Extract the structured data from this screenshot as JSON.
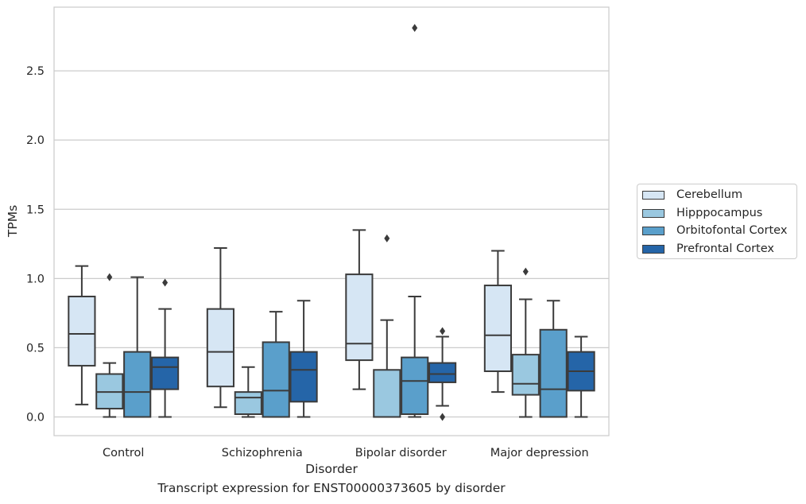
{
  "chart_data": {
    "type": "box",
    "caption": "Transcript expression for ENST00000373605 by disorder",
    "xlabel": "Disorder",
    "ylabel": "TPMs",
    "ylim": [
      -0.135,
      2.96
    ],
    "yticks": [
      "0.0",
      "0.5",
      "1.0",
      "1.5",
      "2.0",
      "2.5"
    ],
    "ytick_values": [
      0,
      0.5,
      1.0,
      1.5,
      2.0,
      2.5
    ],
    "grid": true,
    "legend_position": "right, outside plot",
    "categories": [
      "Control",
      "Schizophrenia",
      "Bipolar disorder",
      "Major depression"
    ],
    "series": [
      {
        "name": "Cerebellum",
        "color": "#d6e6f4",
        "boxes": [
          {
            "whisker_low": 0.09,
            "q1": 0.37,
            "median": 0.6,
            "q3": 0.87,
            "whisker_high": 1.09,
            "outliers": []
          },
          {
            "whisker_low": 0.07,
            "q1": 0.22,
            "median": 0.47,
            "q3": 0.78,
            "whisker_high": 1.22,
            "outliers": []
          },
          {
            "whisker_low": 0.2,
            "q1": 0.41,
            "median": 0.53,
            "q3": 1.03,
            "whisker_high": 1.35,
            "outliers": []
          },
          {
            "whisker_low": 0.18,
            "q1": 0.33,
            "median": 0.59,
            "q3": 0.95,
            "whisker_high": 1.2,
            "outliers": []
          }
        ]
      },
      {
        "name": "Hipppocampus",
        "color": "#9ac8e0",
        "boxes": [
          {
            "whisker_low": 0.0,
            "q1": 0.06,
            "median": 0.18,
            "q3": 0.31,
            "whisker_high": 0.39,
            "outliers": [
              1.01
            ]
          },
          {
            "whisker_low": 0.0,
            "q1": 0.02,
            "median": 0.14,
            "q3": 0.18,
            "whisker_high": 0.36,
            "outliers": []
          },
          {
            "whisker_low": 0.0,
            "q1": 0.0,
            "median": 0.0,
            "q3": 0.34,
            "whisker_high": 0.7,
            "outliers": [
              1.29
            ]
          },
          {
            "whisker_low": 0.0,
            "q1": 0.16,
            "median": 0.24,
            "q3": 0.45,
            "whisker_high": 0.85,
            "outliers": [
              1.05
            ]
          }
        ]
      },
      {
        "name": "Orbitofontal Cortex",
        "color": "#5a9fcb",
        "boxes": [
          {
            "whisker_low": 0.0,
            "q1": 0.0,
            "median": 0.18,
            "q3": 0.47,
            "whisker_high": 1.01,
            "outliers": []
          },
          {
            "whisker_low": 0.0,
            "q1": 0.0,
            "median": 0.19,
            "q3": 0.54,
            "whisker_high": 0.76,
            "outliers": []
          },
          {
            "whisker_low": 0.0,
            "q1": 0.02,
            "median": 0.26,
            "q3": 0.43,
            "whisker_high": 0.87,
            "outliers": [
              2.81
            ]
          },
          {
            "whisker_low": 0.0,
            "q1": 0.0,
            "median": 0.2,
            "q3": 0.63,
            "whisker_high": 0.84,
            "outliers": []
          }
        ]
      },
      {
        "name": "Prefrontal Cortex",
        "color": "#2565a8",
        "boxes": [
          {
            "whisker_low": 0.0,
            "q1": 0.2,
            "median": 0.36,
            "q3": 0.43,
            "whisker_high": 0.78,
            "outliers": [
              0.97
            ]
          },
          {
            "whisker_low": 0.0,
            "q1": 0.11,
            "median": 0.34,
            "q3": 0.47,
            "whisker_high": 0.84,
            "outliers": []
          },
          {
            "whisker_low": 0.08,
            "q1": 0.25,
            "median": 0.31,
            "q3": 0.39,
            "whisker_high": 0.58,
            "outliers": [
              0.0,
              0.62
            ]
          },
          {
            "whisker_low": 0.0,
            "q1": 0.19,
            "median": 0.33,
            "q3": 0.47,
            "whisker_high": 0.58,
            "outliers": []
          }
        ]
      }
    ]
  }
}
